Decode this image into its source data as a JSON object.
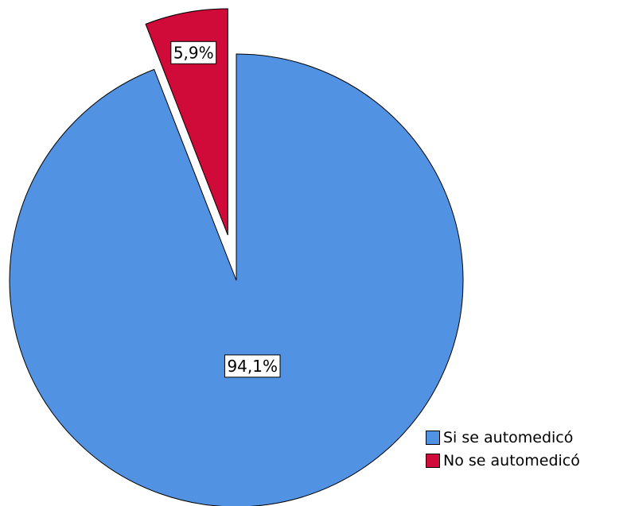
{
  "chart_data": {
    "type": "pie",
    "categories": [
      "Si se automedicó",
      "No se automedicó"
    ],
    "values": [
      94.1,
      5.9
    ],
    "data_labels": [
      "94,1%",
      "5,9%"
    ],
    "colors": [
      "#5193e2",
      "#d00b3a"
    ],
    "exploded": [
      false,
      true
    ],
    "start_angle_deg": 0,
    "direction": "clockwise",
    "legend": {
      "position": "bottom-right",
      "entries": [
        "Si se automedicó",
        "No se automedicó"
      ]
    }
  }
}
